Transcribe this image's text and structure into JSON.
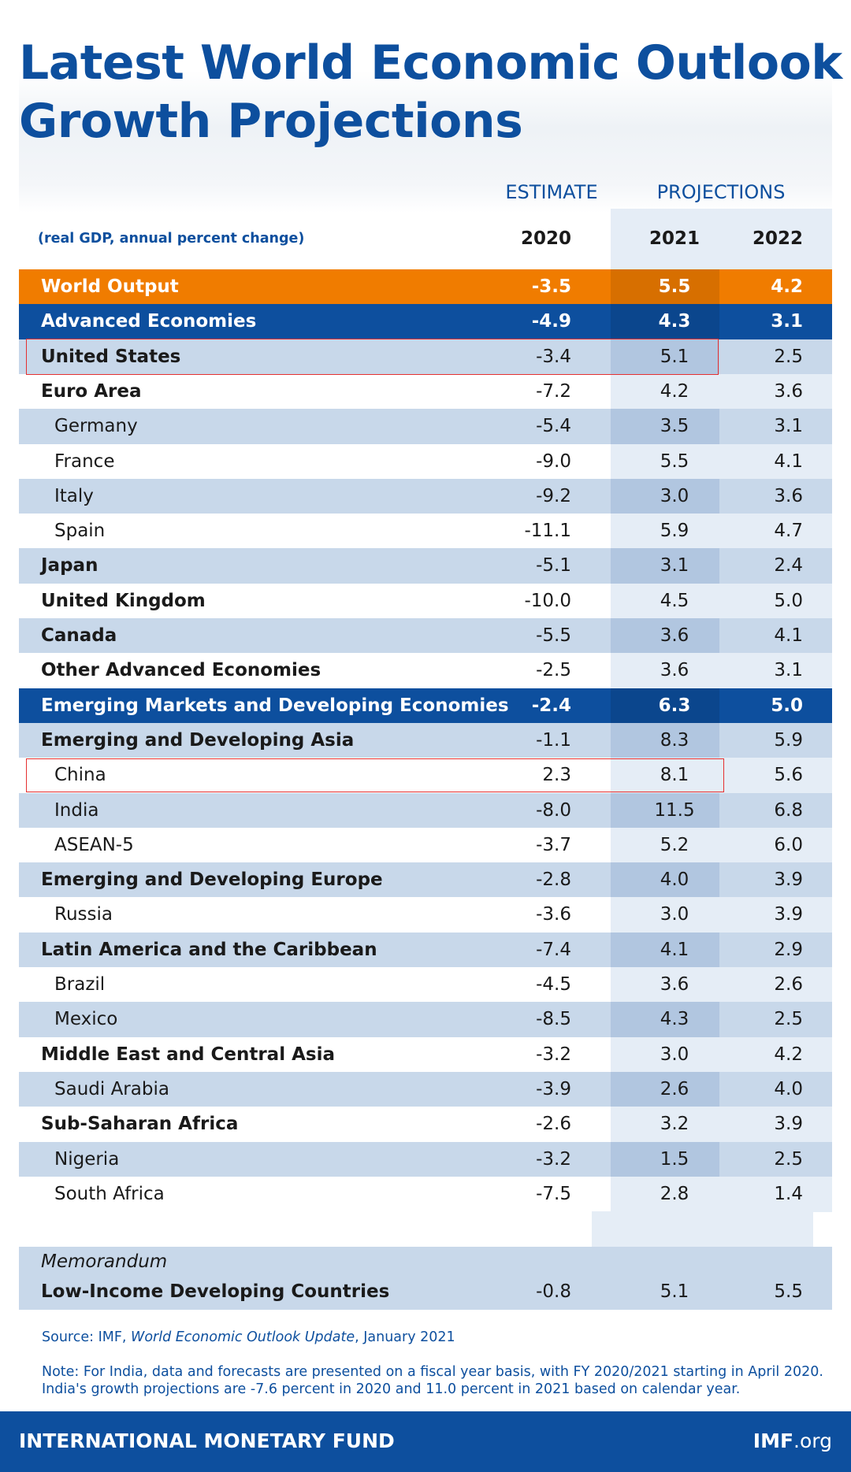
{
  "header": {
    "title_lines": [
      "Latest World Economic Outlook",
      "Growth Projections"
    ],
    "estimate": "ESTIMATE",
    "projections": "PROJECTIONS",
    "subtitle": "(real GDP, annual percent change)",
    "years": [
      "2020",
      "2021",
      "2022"
    ]
  },
  "table": {
    "rows": [
      {
        "label": "World Output",
        "values": [
          "-3.5",
          "5.5",
          "4.2"
        ],
        "color": "#f07c00"
      },
      {
        "label": "Advanced Economies",
        "values": [
          "-4.9",
          "4.3",
          "3.1"
        ],
        "color": "#0d4f9e"
      },
      {
        "label": "United States",
        "values": [
          "-3.4",
          "5.1",
          "2.5"
        ]
      },
      {
        "label": "Euro Area",
        "values": [
          "-7.2",
          "4.2",
          "3.6"
        ]
      },
      {
        "label": "Germany",
        "values": [
          "-5.4",
          "3.5",
          "3.1"
        ],
        "indent": true
      },
      {
        "label": "France",
        "values": [
          "-9.0",
          "5.5",
          "4.1"
        ],
        "indent": true
      },
      {
        "label": "Italy",
        "values": [
          "-9.2",
          "3.0",
          "3.6"
        ],
        "indent": true
      },
      {
        "label": "Spain",
        "values": [
          "-11.1",
          "5.9",
          "4.7"
        ],
        "indent": true
      },
      {
        "label": "Japan",
        "values": [
          "-5.1",
          "3.1",
          "2.4"
        ]
      },
      {
        "label": "United Kingdom",
        "values": [
          "-10.0",
          "4.5",
          "5.0"
        ]
      },
      {
        "label": "Canada",
        "values": [
          "-5.5",
          "3.6",
          "4.1"
        ]
      },
      {
        "label": "Other Advanced Economies",
        "values": [
          "-2.5",
          "3.6",
          "3.1"
        ]
      },
      {
        "label": "Emerging Markets and Developing Economies",
        "values": [
          "-2.4",
          "6.3",
          "5.0"
        ],
        "color": "#0d4f9e"
      },
      {
        "label": "Emerging and Developing Asia",
        "values": [
          "-1.1",
          "8.3",
          "5.9"
        ]
      },
      {
        "label": "China",
        "values": [
          "2.3",
          "8.1",
          "5.6"
        ],
        "indent": true
      },
      {
        "label": "India",
        "values": [
          "-8.0",
          "11.5",
          "6.8"
        ],
        "indent": true
      },
      {
        "label": "ASEAN-5",
        "values": [
          "-3.7",
          "5.2",
          "6.0"
        ],
        "indent": true
      },
      {
        "label": "Emerging and Developing Europe",
        "values": [
          "-2.8",
          "4.0",
          "3.9"
        ]
      },
      {
        "label": "Russia",
        "values": [
          "-3.6",
          "3.0",
          "3.9"
        ],
        "indent": true
      },
      {
        "label": "Latin America and the Caribbean",
        "values": [
          "-7.4",
          "4.1",
          "2.9"
        ]
      },
      {
        "label": "Brazil",
        "values": [
          "-4.5",
          "3.6",
          "2.6"
        ],
        "indent": true
      },
      {
        "label": "Mexico",
        "values": [
          "-8.5",
          "4.3",
          "2.5"
        ],
        "indent": true
      },
      {
        "label": "Middle East and Central Asia",
        "values": [
          "-3.2",
          "3.0",
          "4.2"
        ]
      },
      {
        "label": "Saudi Arabia",
        "values": [
          "-3.9",
          "2.6",
          "4.0"
        ],
        "indent": true
      },
      {
        "label": "Sub-Saharan Africa",
        "values": [
          "-2.6",
          "3.2",
          "3.9"
        ]
      },
      {
        "label": "Nigeria",
        "values": [
          "-3.2",
          "1.5",
          "2.5"
        ],
        "indent": true
      },
      {
        "label": "South Africa",
        "values": [
          "-7.5",
          "2.8",
          "1.4"
        ],
        "indent": true
      }
    ],
    "memorandum": {
      "title": "Memorandum",
      "label": "Low-Income Developing Countries",
      "values": [
        "-0.8",
        "5.1",
        "5.5"
      ]
    }
  },
  "source": [
    "Source: IMF, ",
    "World Economic Outlook Update",
    ", January 2021"
  ],
  "note": [
    "Note: For India, data and forecasts are presented on a fiscal year basis, with FY 2020/2021 starting in April 2020.",
    "India's growth projections are -7.6 percent in 2020 and 11.0 percent in 2021 based on calendar year."
  ],
  "footer": {
    "left": "INTERNATIONAL MONETARY FUND",
    "brand": "IMF",
    "domain": ".org"
  }
}
